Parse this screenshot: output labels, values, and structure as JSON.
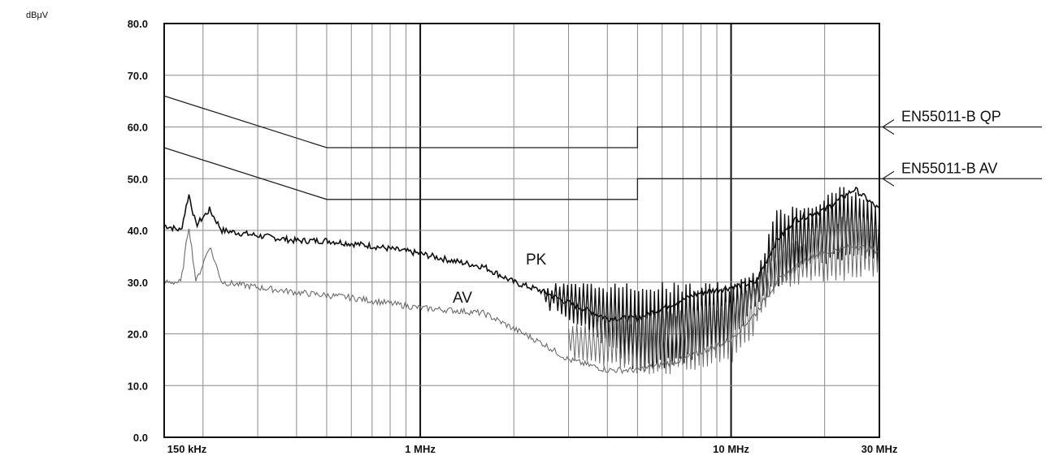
{
  "chart_data": {
    "type": "line",
    "y_unit": "dBμV",
    "x_scale": "log",
    "xlim_hz": [
      150000,
      30000000
    ],
    "ylim": [
      0,
      80
    ],
    "grid": true,
    "y_ticks": [
      {
        "value": 0,
        "label": "0.0"
      },
      {
        "value": 10,
        "label": "10.0"
      },
      {
        "value": 20,
        "label": "20.0"
      },
      {
        "value": 30,
        "label": "30.0"
      },
      {
        "value": 40,
        "label": "40.0"
      },
      {
        "value": 50,
        "label": "50.0"
      },
      {
        "value": 60,
        "label": "60.0"
      },
      {
        "value": 70,
        "label": "70.0"
      },
      {
        "value": 80,
        "label": "80.0"
      }
    ],
    "x_tick_labels": [
      {
        "hz": 150000,
        "label": "150 kHz"
      },
      {
        "hz": 1000000,
        "label": "1 MHz"
      },
      {
        "hz": 10000000,
        "label": "10 MHz"
      },
      {
        "hz": 30000000,
        "label": "30 MHz"
      }
    ],
    "limit_lines": [
      {
        "name": "EN55011-B QP",
        "points": [
          [
            150000,
            66
          ],
          [
            500000,
            56
          ],
          [
            5000000,
            56
          ],
          [
            5000000,
            60
          ],
          [
            30000000,
            60
          ]
        ]
      },
      {
        "name": "EN55011-B AV",
        "points": [
          [
            150000,
            56
          ],
          [
            500000,
            46
          ],
          [
            5000000,
            46
          ],
          [
            5000000,
            50
          ],
          [
            30000000,
            50
          ]
        ]
      }
    ],
    "series": [
      {
        "name": "PK",
        "points": [
          [
            150000,
            41
          ],
          [
            170000,
            40
          ],
          [
            180000,
            47
          ],
          [
            190000,
            41
          ],
          [
            210000,
            44
          ],
          [
            230000,
            40
          ],
          [
            300000,
            39
          ],
          [
            400000,
            38
          ],
          [
            500000,
            38
          ],
          [
            700000,
            37
          ],
          [
            1000000,
            35.5
          ],
          [
            1300000,
            34
          ],
          [
            1600000,
            33
          ],
          [
            2000000,
            30
          ],
          [
            2400000,
            28.5
          ],
          [
            3000000,
            26
          ],
          [
            4000000,
            23
          ],
          [
            5000000,
            23
          ],
          [
            6000000,
            25
          ],
          [
            8000000,
            28
          ],
          [
            10000000,
            29
          ],
          [
            12000000,
            30
          ],
          [
            14000000,
            38
          ],
          [
            16000000,
            42
          ],
          [
            20000000,
            44
          ],
          [
            25000000,
            48
          ],
          [
            30000000,
            44
          ]
        ],
        "noise_band": [
          [
            2500000,
            25,
            30
          ],
          [
            3500000,
            20,
            30
          ],
          [
            5000000,
            12,
            30
          ],
          [
            7000000,
            14,
            30
          ],
          [
            10000000,
            18,
            30
          ],
          [
            12000000,
            25,
            32
          ],
          [
            14000000,
            28,
            44
          ],
          [
            18000000,
            33,
            46
          ],
          [
            23000000,
            34,
            49
          ],
          [
            30000000,
            33,
            45
          ]
        ]
      },
      {
        "name": "AV",
        "points": [
          [
            150000,
            30
          ],
          [
            170000,
            30
          ],
          [
            180000,
            41
          ],
          [
            190000,
            30
          ],
          [
            210000,
            37
          ],
          [
            230000,
            30
          ],
          [
            300000,
            29
          ],
          [
            400000,
            28
          ],
          [
            600000,
            27
          ],
          [
            1000000,
            25
          ],
          [
            1300000,
            24.5
          ],
          [
            1600000,
            24
          ],
          [
            2000000,
            21
          ],
          [
            2500000,
            18
          ],
          [
            3000000,
            15
          ],
          [
            4000000,
            13
          ],
          [
            5000000,
            13
          ],
          [
            7000000,
            15
          ],
          [
            10000000,
            19
          ],
          [
            12000000,
            24
          ],
          [
            14000000,
            30
          ],
          [
            18000000,
            35
          ],
          [
            25000000,
            37
          ],
          [
            30000000,
            36
          ]
        ],
        "noise_band": [
          [
            3000000,
            15,
            22
          ],
          [
            5000000,
            12,
            24
          ],
          [
            7000000,
            12,
            25
          ],
          [
            10000000,
            14,
            27
          ],
          [
            12000000,
            20,
            30
          ],
          [
            14000000,
            28,
            36
          ],
          [
            18000000,
            30,
            40
          ],
          [
            25000000,
            30,
            44
          ],
          [
            30000000,
            31,
            40
          ]
        ]
      }
    ]
  }
}
